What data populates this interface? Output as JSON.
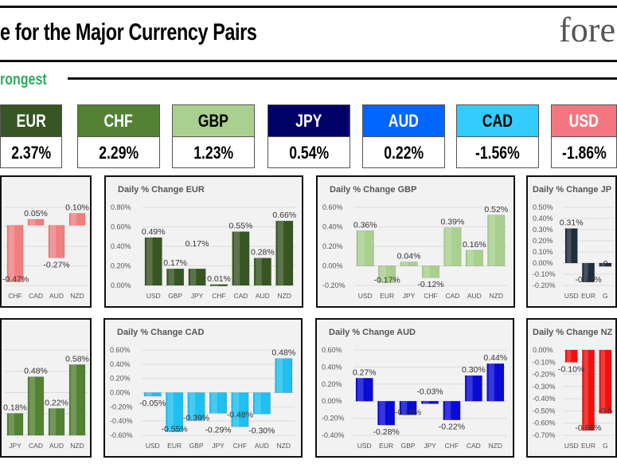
{
  "header": {
    "title": "e for the Major Currency Pairs",
    "logo": "fore"
  },
  "section": {
    "label": "rongest"
  },
  "ranking": [
    {
      "currency": "EUR",
      "change": "2.37%",
      "bg": "#375623",
      "fg": "#ffffff"
    },
    {
      "currency": "CHF",
      "change": "2.29%",
      "bg": "#548235",
      "fg": "#ffffff"
    },
    {
      "currency": "GBP",
      "change": "1.23%",
      "bg": "#a9d08e",
      "fg": "#000000"
    },
    {
      "currency": "JPY",
      "change": "0.54%",
      "bg": "#000066",
      "fg": "#ffffff"
    },
    {
      "currency": "AUD",
      "change": "0.22%",
      "bg": "#0066ff",
      "fg": "#ffffff"
    },
    {
      "currency": "CAD",
      "change": "-1.56%",
      "bg": "#33ccff",
      "fg": "#000000"
    },
    {
      "currency": "USD",
      "change": "-1.86%",
      "bg": "#f4777f",
      "fg": "#ffffff"
    }
  ],
  "chart_data": [
    {
      "type": "bar",
      "title": "",
      "categories": [
        "CHF",
        "CAD",
        "AUD",
        "NZD"
      ],
      "values": [
        -0.47,
        0.05,
        -0.27,
        0.1
      ],
      "labels": [
        "-0.47%",
        "0.05%",
        "-0.27%",
        "0.10%"
      ],
      "ylim": [
        -0.5,
        0.15
      ],
      "yticks": [],
      "color": "#f08080",
      "grid": true
    },
    {
      "type": "bar",
      "title": "Daily % Change EUR",
      "categories": [
        "USD",
        "GBP",
        "JPY",
        "CHF",
        "CAD",
        "AUD",
        "NZD"
      ],
      "values": [
        0.49,
        0.17,
        0.17,
        0.01,
        0.55,
        0.28,
        0.66
      ],
      "labels": [
        "0.49%",
        "0.17%",
        "0.17%",
        "0.01%",
        "0.55%",
        "0.28%",
        "0.66%"
      ],
      "ylim": [
        0,
        0.8
      ],
      "yticks": [
        "0.00%",
        "0.20%",
        "0.40%",
        "0.60%",
        "0.80%"
      ],
      "color": "#375623",
      "grid": true
    },
    {
      "type": "bar",
      "title": "Daily % Change GBP",
      "categories": [
        "USD",
        "EUR",
        "JPY",
        "CHF",
        "CAD",
        "AUD",
        "NZD"
      ],
      "values": [
        0.36,
        -0.17,
        0.04,
        -0.12,
        0.39,
        0.16,
        0.52
      ],
      "labels": [
        "0.36%",
        "-0.17%",
        "0.04%",
        "-0.12%",
        "0.39%",
        "0.16%",
        "0.52%"
      ],
      "ylim": [
        -0.2,
        0.6
      ],
      "yticks": [
        "-0.20%",
        "0.00%",
        "0.20%",
        "0.40%",
        "0.60%"
      ],
      "color": "#a9d08e",
      "grid": true
    },
    {
      "type": "bar",
      "title": "Daily % Change JP",
      "categories": [
        "USD",
        "EUR",
        "G"
      ],
      "values": [
        0.31,
        -0.17,
        -0.03
      ],
      "labels": [
        "0.31%",
        "-0.17%",
        "-0."
      ],
      "ylim": [
        -0.2,
        0.5
      ],
      "yticks": [
        "-0.20%",
        "-0.10%",
        "0.00%",
        "0.10%",
        "0.20%",
        "0.30%",
        "0.40%",
        "0.50%"
      ],
      "color": "#1f2d3d",
      "grid": true
    },
    {
      "type": "bar",
      "title": "",
      "categories": [
        "JPY",
        "CAD",
        "AUD",
        "NZD"
      ],
      "values": [
        0.18,
        0.48,
        0.22,
        0.58
      ],
      "labels": [
        "0.18%",
        "0.48%",
        "0.22%",
        "0.58%"
      ],
      "ylim": [
        0,
        0.7
      ],
      "yticks": [],
      "color": "#548235",
      "grid": true
    },
    {
      "type": "bar",
      "title": "Daily % Change CAD",
      "categories": [
        "USD",
        "EUR",
        "GBP",
        "JPY",
        "CHF",
        "AUD",
        "NZD"
      ],
      "values": [
        -0.05,
        -0.55,
        -0.39,
        -0.29,
        -0.48,
        -0.3,
        0.48
      ],
      "labels": [
        "-0.05%",
        "-0.55%",
        "-0.39%",
        "-0.29%",
        "-0.48%",
        "-0.30%",
        "0.48%"
      ],
      "ylim": [
        -0.6,
        0.6
      ],
      "yticks": [
        "-0.60%",
        "-0.40%",
        "-0.20%",
        "0.00%",
        "0.20%",
        "0.40%",
        "0.60%"
      ],
      "color": "#1fbfef",
      "grid": true
    },
    {
      "type": "bar",
      "title": "Daily % Change AUD",
      "categories": [
        "USD",
        "EUR",
        "GBP",
        "JPY",
        "CHF",
        "CAD",
        "NZD"
      ],
      "values": [
        0.27,
        -0.28,
        -0.16,
        -0.03,
        -0.22,
        0.3,
        0.44
      ],
      "labels": [
        "0.27%",
        "-0.28%",
        "-0.16%",
        "-0.03%",
        "-0.22%",
        "0.30%",
        "0.44%"
      ],
      "ylim": [
        -0.4,
        0.6
      ],
      "yticks": [
        "-0.40%",
        "-0.20%",
        "0.00%",
        "0.20%",
        "0.40%",
        "0.60%"
      ],
      "color": "#0a0ad6",
      "grid": true
    },
    {
      "type": "bar",
      "title": "Daily % Change NZ",
      "categories": [
        "USD",
        "EUR",
        "G"
      ],
      "values": [
        -0.1,
        -0.66,
        -0.52
      ],
      "labels": [
        "-0.10%",
        "-0.66%",
        "-0.5"
      ],
      "ylim": [
        -0.7,
        0
      ],
      "yticks": [
        "-0.70%",
        "-0.60%",
        "-0.50%",
        "-0.40%",
        "-0.30%",
        "-0.20%",
        "-0.10%",
        "0.00%"
      ],
      "color": "#f01010",
      "grid": true
    }
  ]
}
